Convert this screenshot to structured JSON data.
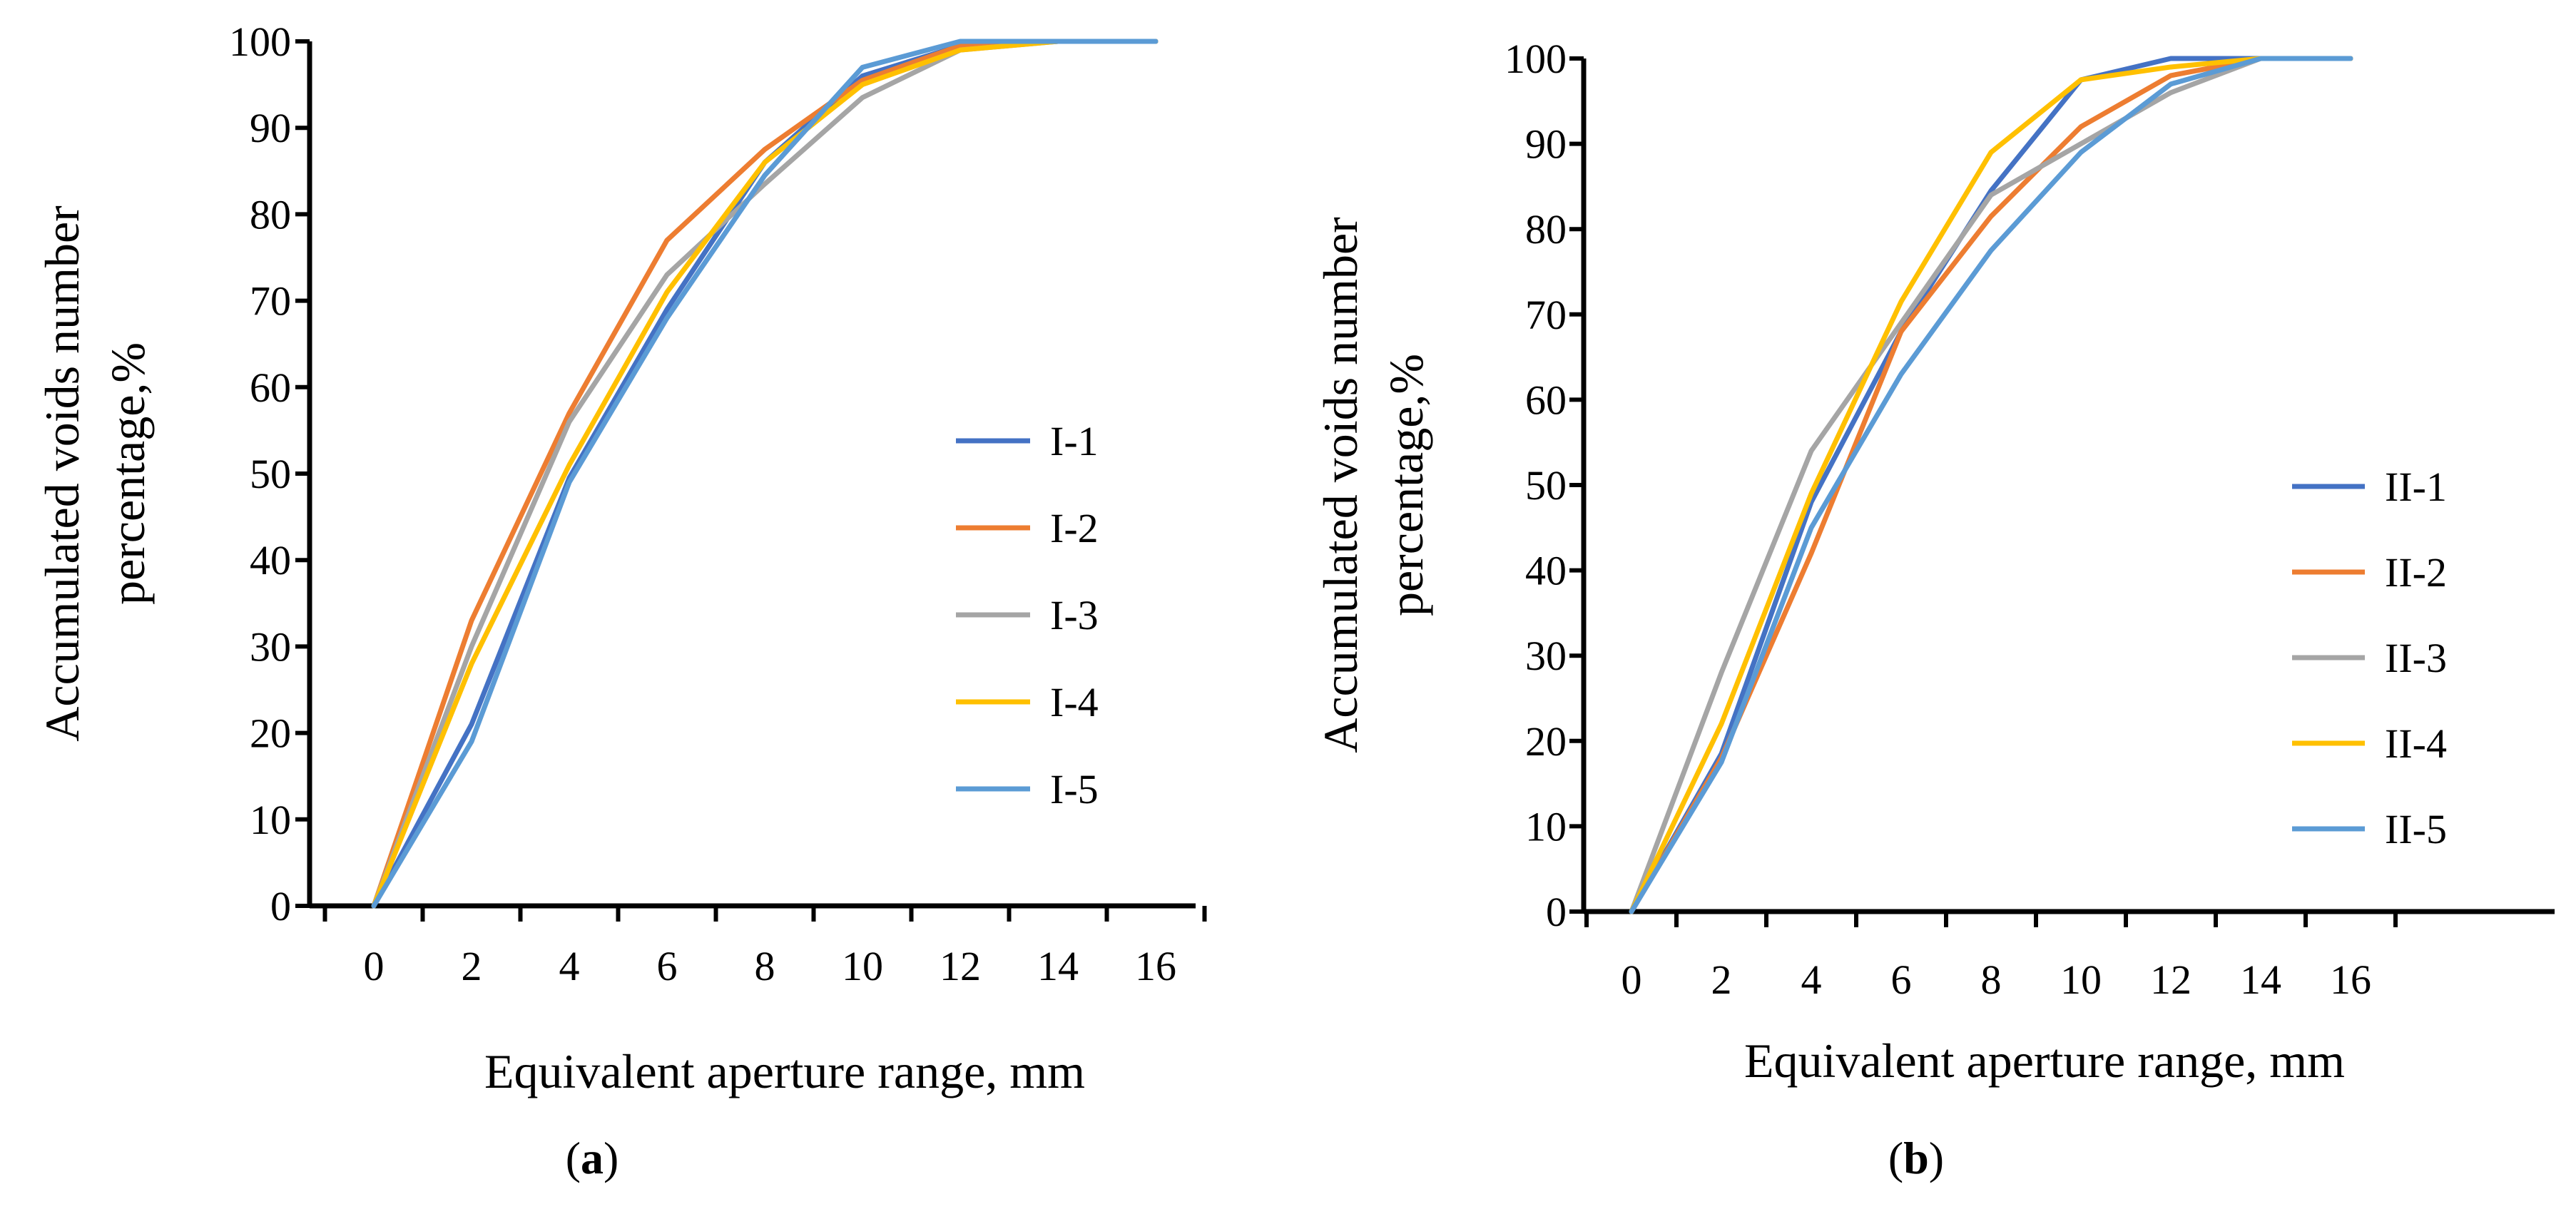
{
  "chart_data": [
    {
      "type": "line",
      "panel_caption": {
        "open": "(",
        "letter": "a",
        "close": ")"
      },
      "xlabel": "Equivalent aperture range, mm",
      "ylabel_lines": [
        "Accumulated voids number",
        "percentage,%"
      ],
      "x": [
        0,
        2,
        4,
        6,
        8,
        10,
        12,
        14,
        16
      ],
      "x_tick_labels": [
        "0",
        "2",
        "4",
        "6",
        "8",
        "10",
        "12",
        "14",
        "16"
      ],
      "y_tick_labels": [
        "0",
        "10",
        "20",
        "30",
        "40",
        "50",
        "60",
        "70",
        "80",
        "90",
        "100"
      ],
      "ylim": [
        0,
        100
      ],
      "grid": false,
      "legend_position": "right-middle",
      "series": [
        {
          "name": "I-1",
          "color": "#4472C4",
          "values": [
            0,
            21,
            49.5,
            69,
            86,
            96,
            99.5,
            100,
            100
          ]
        },
        {
          "name": "I-2",
          "color": "#ED7D31",
          "values": [
            0,
            33,
            57,
            77,
            87.5,
            95.5,
            99.5,
            100,
            100
          ]
        },
        {
          "name": "I-3",
          "color": "#A5A5A5",
          "values": [
            0,
            30,
            56,
            73,
            83.5,
            93.5,
            99,
            100,
            100
          ]
        },
        {
          "name": "I-4",
          "color": "#FFC000",
          "values": [
            0,
            28,
            51,
            71,
            86,
            95,
            99,
            100,
            100
          ]
        },
        {
          "name": "I-5",
          "color": "#5B9BD5",
          "values": [
            0,
            19,
            49,
            68,
            84.5,
            97,
            100,
            100,
            100
          ]
        }
      ]
    },
    {
      "type": "line",
      "panel_caption": {
        "open": "(",
        "letter": "b",
        "close": ")"
      },
      "xlabel": "Equivalent aperture range, mm",
      "ylabel_lines": [
        "Accumulated voids number",
        "percentage,%"
      ],
      "x": [
        0,
        2,
        4,
        6,
        8,
        10,
        12,
        14,
        16
      ],
      "x_tick_labels": [
        "0",
        "2",
        "4",
        "6",
        "8",
        "10",
        "12",
        "14",
        "16"
      ],
      "y_tick_labels": [
        "0",
        "10",
        "20",
        "30",
        "40",
        "50",
        "60",
        "70",
        "80",
        "90",
        "100"
      ],
      "ylim": [
        0,
        100
      ],
      "grid": false,
      "legend_position": "right-bottom",
      "series": [
        {
          "name": "II-1",
          "color": "#4472C4",
          "values": [
            0,
            18.5,
            48,
            68,
            84.5,
            97.5,
            100,
            100,
            100
          ]
        },
        {
          "name": "II-2",
          "color": "#ED7D31",
          "values": [
            0,
            18,
            42,
            68,
            81.5,
            92,
            98,
            100,
            100
          ]
        },
        {
          "name": "II-3",
          "color": "#A5A5A5",
          "values": [
            0,
            28,
            54,
            69,
            84,
            90,
            96,
            100,
            100
          ]
        },
        {
          "name": "II-4",
          "color": "#FFC000",
          "values": [
            0,
            22,
            49,
            71.5,
            89,
            97.5,
            99,
            100,
            100
          ]
        },
        {
          "name": "II-5",
          "color": "#5B9BD5",
          "values": [
            0,
            17.5,
            45,
            63,
            77.5,
            89,
            97,
            100,
            100
          ]
        }
      ]
    }
  ]
}
